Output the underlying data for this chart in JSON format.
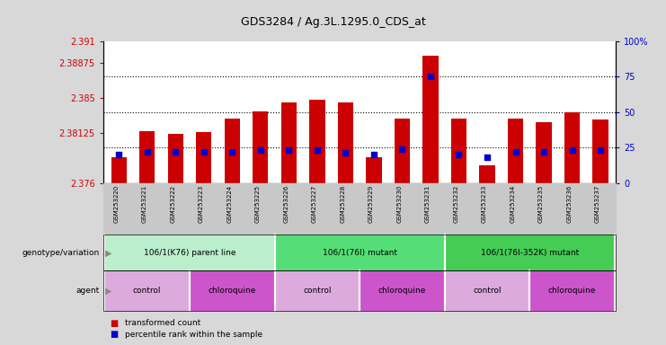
{
  "title": "GDS3284 / Ag.3L.1295.0_CDS_at",
  "samples": [
    "GSM253220",
    "GSM253221",
    "GSM253222",
    "GSM253223",
    "GSM253224",
    "GSM253225",
    "GSM253226",
    "GSM253227",
    "GSM253228",
    "GSM253229",
    "GSM253230",
    "GSM253231",
    "GSM253232",
    "GSM253233",
    "GSM253234",
    "GSM253235",
    "GSM253236",
    "GSM253237"
  ],
  "transformed_count": [
    2.3787,
    2.3815,
    2.3812,
    2.3814,
    2.3828,
    2.3836,
    2.3845,
    2.3848,
    2.3845,
    2.3787,
    2.3828,
    2.3895,
    2.3828,
    2.3779,
    2.3828,
    2.3824,
    2.3835,
    2.3827
  ],
  "percentile_rank": [
    20,
    22,
    22,
    22,
    22,
    23,
    23,
    23,
    21,
    20,
    24,
    75,
    20,
    18,
    22,
    22,
    23,
    23
  ],
  "y_min": 2.376,
  "y_max": 2.391,
  "y_ticks": [
    2.376,
    2.38125,
    2.385,
    2.38875,
    2.391
  ],
  "y_tick_labels": [
    "2.376",
    "2.38125",
    "2.385",
    "2.38875",
    "2.391"
  ],
  "y2_ticks": [
    0,
    25,
    50,
    75,
    100
  ],
  "y2_tick_labels": [
    "0",
    "25",
    "50",
    "75",
    "100%"
  ],
  "bar_color": "#cc0000",
  "marker_color": "#0000cc",
  "bg_color": "#d8d8d8",
  "plot_bg": "#ffffff",
  "xtick_bg": "#c8c8c8",
  "genotype_groups": [
    {
      "label": "106/1(K76) parent line",
      "start": 0,
      "end": 5,
      "color": "#bbeecc"
    },
    {
      "label": "106/1(76I) mutant",
      "start": 6,
      "end": 11,
      "color": "#55dd77"
    },
    {
      "label": "106/1(76I-352K) mutant",
      "start": 12,
      "end": 17,
      "color": "#44cc55"
    }
  ],
  "agent_groups": [
    {
      "label": "control",
      "start": 0,
      "end": 2,
      "color": "#ddaadd"
    },
    {
      "label": "chloroquine",
      "start": 3,
      "end": 5,
      "color": "#cc55cc"
    },
    {
      "label": "control",
      "start": 6,
      "end": 8,
      "color": "#ddaadd"
    },
    {
      "label": "chloroquine",
      "start": 9,
      "end": 11,
      "color": "#cc55cc"
    },
    {
      "label": "control",
      "start": 12,
      "end": 14,
      "color": "#ddaadd"
    },
    {
      "label": "chloroquine",
      "start": 15,
      "end": 17,
      "color": "#cc55cc"
    }
  ],
  "legend_items": [
    {
      "label": "transformed count",
      "color": "#cc0000"
    },
    {
      "label": "percentile rank within the sample",
      "color": "#0000cc"
    }
  ]
}
